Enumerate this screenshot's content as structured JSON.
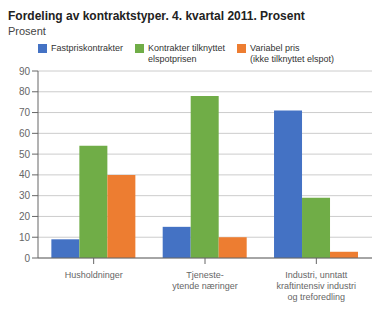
{
  "chart_data": {
    "type": "bar",
    "title": "Fordeling av kontraktstyper. 4. kvartal 2011. Prosent",
    "ylabel": "Prosent",
    "categories": [
      "Husholdninger",
      "Tjeneste-\nytende næringer",
      "Industri, unntatt\nkraftintensiv industri\nog treforedling"
    ],
    "series": [
      {
        "name": "Fastpriskontrakter",
        "color": "#4472c4",
        "values": [
          9,
          15,
          71
        ]
      },
      {
        "name": "Kontrakter tilknyttet\nelspotprisen",
        "color": "#70ad47",
        "values": [
          54,
          78,
          29
        ]
      },
      {
        "name": "Variabel pris\n(ikke tilknyttet elspot)",
        "color": "#ed7d31",
        "values": [
          40,
          10,
          3
        ]
      }
    ],
    "ylim": [
      0,
      90
    ],
    "yticks": [
      0,
      10,
      20,
      30,
      40,
      50,
      60,
      70,
      80,
      90
    ],
    "grid": true,
    "legend": "top"
  }
}
